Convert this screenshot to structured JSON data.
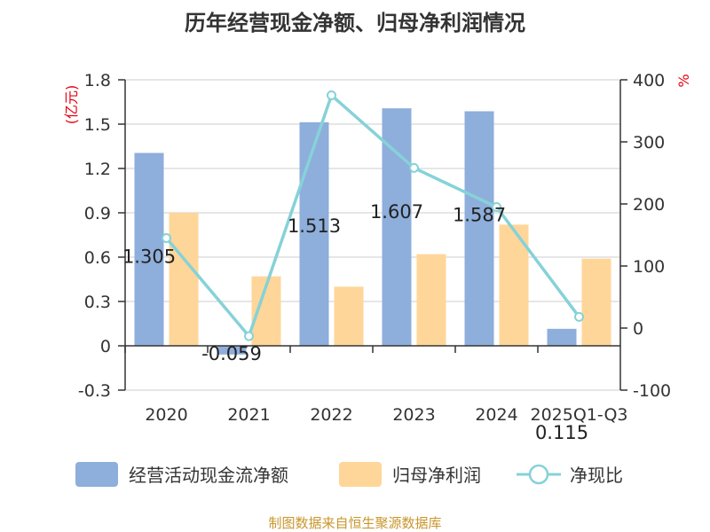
{
  "chart_data": {
    "type": "bar",
    "title": "历年经营现金净额、归母净利润情况",
    "categories": [
      "2020",
      "2021",
      "2022",
      "2023",
      "2024",
      "2025Q1-Q3"
    ],
    "series": [
      {
        "name": "经营活动现金流净额",
        "kind": "bar",
        "axis": "left",
        "color": "#8eaedb",
        "values": [
          1.305,
          -0.059,
          1.513,
          1.607,
          1.587,
          0.115
        ],
        "labels": [
          "1.305",
          "-0.059",
          "1.513",
          "1.607",
          "1.587",
          "0.115"
        ]
      },
      {
        "name": "归母净利润",
        "kind": "bar",
        "axis": "left",
        "color": "#ffd699",
        "values": [
          0.9,
          0.47,
          0.4,
          0.62,
          0.82,
          0.59
        ]
      },
      {
        "name": "净现比",
        "kind": "line",
        "axis": "right",
        "color": "#86d2d8",
        "values": [
          145,
          -13,
          375,
          258,
          195,
          18
        ]
      }
    ],
    "left_axis": {
      "unit": "(亿元)",
      "ylim": [
        -0.3,
        1.8
      ],
      "ticks": [
        -0.3,
        0,
        0.3,
        0.6,
        0.9,
        1.2,
        1.5,
        1.8
      ],
      "tick_labels": [
        "-0.3",
        "0",
        "0.3",
        "0.6",
        "0.9",
        "1.2",
        "1.5",
        "1.8"
      ]
    },
    "right_axis": {
      "unit": "%",
      "ylim": [
        -100,
        400
      ],
      "ticks": [
        -100,
        0,
        100,
        200,
        300,
        400
      ],
      "tick_labels": [
        "-100",
        "0",
        "100",
        "200",
        "300",
        "400"
      ]
    },
    "grid": true,
    "legend_position": "bottom"
  },
  "source": "制图数据来自恒生聚源数据库",
  "colors": {
    "unit": "#e60012",
    "source": "#c8962c",
    "axis": "#333333",
    "grid": "#cccccc"
  }
}
